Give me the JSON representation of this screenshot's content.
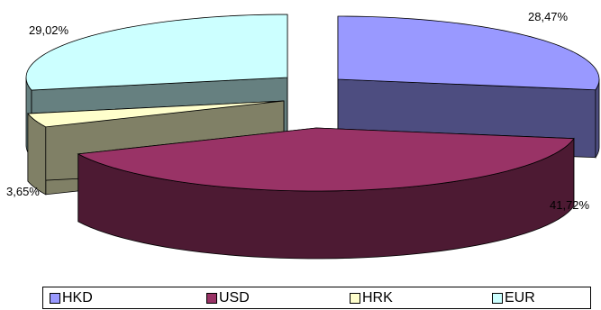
{
  "chart_data": {
    "type": "pie",
    "style": "3d-exploded",
    "title": "",
    "categories": [
      "HKD",
      "USD",
      "HRK",
      "EUR"
    ],
    "values": [
      28.47,
      41.72,
      3.65,
      29.02
    ],
    "value_labels": [
      "28,47%",
      "41,72%",
      "3,65%",
      "29,02%"
    ],
    "colors": {
      "HKD": "#9999ff",
      "USD": "#993366",
      "HRK": "#ffffcc",
      "EUR": "#ccffff"
    },
    "legend_position": "bottom"
  }
}
